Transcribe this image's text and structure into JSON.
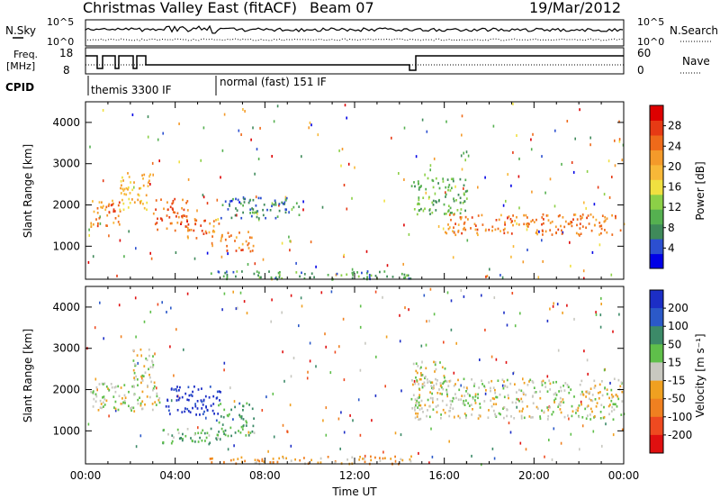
{
  "header": {
    "title": "Christmas Valley East (fitACF)",
    "beam": "Beam 07",
    "date": "19/Mar/2012"
  },
  "status_panel": {
    "nsky_label": "N.Sky",
    "nsearch_label": "N.Search",
    "freq_label_1": "Freq.",
    "freq_label_2": "[MHz]",
    "nave_label": "Nave",
    "cpid_label": "CPID",
    "left_ticks_top": [
      "10^5",
      "10^0"
    ],
    "right_ticks_top": [
      "10^5",
      "10^0"
    ],
    "left_ticks_freq": [
      "18",
      "8"
    ],
    "right_ticks_nave": [
      "60",
      "0"
    ],
    "cpid_modes": [
      "themis 3300 IF",
      "normal (fast) 151 IF"
    ]
  },
  "colorbars": {
    "power": {
      "label": "Power [dB]",
      "ticks": [
        "28",
        "24",
        "20",
        "16",
        "12",
        "8",
        "4"
      ],
      "colors": [
        "#0000e6",
        "#2c4fd0",
        "#3f8a5a",
        "#55b050",
        "#8cd047",
        "#f0e040",
        "#f8b838",
        "#f49a2a",
        "#ee6a1a",
        "#e63a14",
        "#dd0000"
      ]
    },
    "velocity": {
      "label": "Velocity [m s⁻¹]",
      "ticks": [
        "200",
        "100",
        "50",
        "15",
        "-15",
        "-50",
        "-100",
        "-200"
      ],
      "colors": [
        "#1c2ec6",
        "#2b59c8",
        "#3c8a68",
        "#5fbf4a",
        "#c8c8c0",
        "#f0a020",
        "#f08020",
        "#ee4a20",
        "#e01010"
      ]
    }
  },
  "chart_data": [
    {
      "type": "heatmap",
      "panel": "power",
      "ylabel": "Slant Range [km]",
      "yticks": [
        1000,
        2000,
        3000,
        4000
      ],
      "ylim": [
        200,
        4500
      ],
      "xlim_hours": [
        0,
        24
      ],
      "zlabel": "Power [dB]",
      "zlim": [
        0,
        30
      ],
      "regions": [
        {
          "t0": 0.2,
          "t1": 1.6,
          "r0": 1500,
          "r1": 2200,
          "value": 22
        },
        {
          "t0": 1.5,
          "t1": 2.9,
          "r0": 1900,
          "r1": 2800,
          "value": 18
        },
        {
          "t0": 3.0,
          "t1": 4.6,
          "r0": 1400,
          "r1": 2200,
          "value": 24
        },
        {
          "t0": 4.4,
          "t1": 6.0,
          "r0": 1200,
          "r1": 1700,
          "value": 22
        },
        {
          "t0": 6.0,
          "t1": 7.5,
          "r0": 900,
          "r1": 1400,
          "value": 22
        },
        {
          "t0": 6.0,
          "t1": 9.5,
          "r0": 1700,
          "r1": 2200,
          "value": 6
        },
        {
          "t0": 14.5,
          "t1": 17.0,
          "r0": 1800,
          "r1": 2700,
          "value": 10
        },
        {
          "t0": 16.0,
          "t1": 24.0,
          "r0": 1300,
          "r1": 1800,
          "value": 22
        },
        {
          "t0": 5.5,
          "t1": 14.5,
          "r0": 220,
          "r1": 420,
          "value": 8
        }
      ]
    },
    {
      "type": "heatmap",
      "panel": "velocity",
      "ylabel": "Slant Range [km]",
      "yticks": [
        1000,
        2000,
        3000,
        4000
      ],
      "ylim": [
        200,
        4500
      ],
      "xlim_hours": [
        0,
        24
      ],
      "xlabel": "Time UT",
      "xticks": [
        "00:00",
        "04:00",
        "08:00",
        "12:00",
        "16:00",
        "20:00",
        "00:00"
      ],
      "zlabel": "Velocity [m s⁻¹]",
      "zlim": [
        -200,
        200
      ],
      "regions": [
        {
          "t0": 0.2,
          "t1": 3.4,
          "r0": 1500,
          "r1": 2200,
          "value": 0
        },
        {
          "t0": 2.0,
          "t1": 3.0,
          "r0": 2100,
          "r1": 3000,
          "value": 0
        },
        {
          "t0": 3.5,
          "t1": 6.0,
          "r0": 1400,
          "r1": 2100,
          "value": 180
        },
        {
          "t0": 3.3,
          "t1": 6.0,
          "r0": 700,
          "r1": 1100,
          "value": 60
        },
        {
          "t0": 5.8,
          "t1": 7.5,
          "r0": 900,
          "r1": 1700,
          "value": 70
        },
        {
          "t0": 5.5,
          "t1": 14.5,
          "r0": 220,
          "r1": 420,
          "value": -60
        },
        {
          "t0": 14.5,
          "t1": 24.0,
          "r0": 1300,
          "r1": 2300,
          "value": 0
        },
        {
          "t0": 14.6,
          "t1": 16.0,
          "r0": 2000,
          "r1": 2700,
          "value": 0
        }
      ]
    }
  ]
}
